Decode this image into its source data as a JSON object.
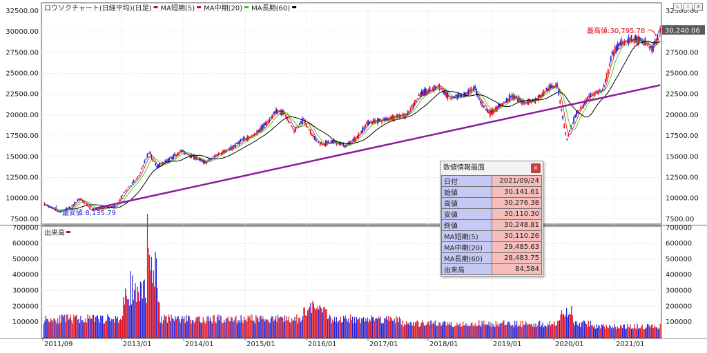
{
  "window_buttons": [
    "L",
    "I",
    "X"
  ],
  "chart_data": [
    {
      "type": "candlestick",
      "legend": [
        {
          "label": "ロウソクチャート(日経平均)(日足)",
          "color": "#e0000d"
        },
        {
          "label": "MA短期(5)",
          "color": "#e0000d"
        },
        {
          "label": "MA中期(20)",
          "color": "#22cc22"
        },
        {
          "label": "MA長期(60)",
          "color": "#000000"
        }
      ],
      "y_ticks": [
        "32500.00",
        "30000.00",
        "27500.00",
        "25000.00",
        "22500.00",
        "20000.00",
        "17500.00",
        "15000.00",
        "12500.00",
        "10000.00",
        "7500.00"
      ],
      "ylim": [
        6900,
        33500
      ],
      "grid": true,
      "price_series": {
        "t": [
          2011.67,
          2011.9,
          2012.1,
          2012.25,
          2012.45,
          2012.6,
          2012.8,
          2012.9,
          2013.0,
          2013.2,
          2013.38,
          2013.5,
          2013.7,
          2013.9,
          2014.1,
          2014.3,
          2014.5,
          2014.7,
          2014.9,
          2015.1,
          2015.3,
          2015.45,
          2015.6,
          2015.75,
          2015.9,
          2016.1,
          2016.2,
          2016.4,
          2016.6,
          2016.8,
          2016.95,
          2017.2,
          2017.4,
          2017.6,
          2017.8,
          2017.95,
          2018.1,
          2018.3,
          2018.5,
          2018.7,
          2018.8,
          2018.95,
          2019.1,
          2019.3,
          2019.5,
          2019.7,
          2019.9,
          2020.05,
          2020.2,
          2020.35,
          2020.6,
          2020.8,
          2020.95,
          2021.1,
          2021.3,
          2021.5,
          2021.6,
          2021.73
        ],
        "v": [
          9300,
          8400,
          8900,
          10000,
          8600,
          8800,
          9000,
          9800,
          11000,
          12500,
          15600,
          13800,
          14600,
          15700,
          15000,
          14300,
          15300,
          15900,
          17000,
          17600,
          19000,
          20500,
          20200,
          18000,
          19500,
          17000,
          16500,
          16800,
          16300,
          17500,
          19100,
          19400,
          19800,
          20000,
          22500,
          22900,
          23500,
          22000,
          22300,
          23300,
          21500,
          20200,
          21000,
          22300,
          21500,
          21800,
          23200,
          23700,
          17000,
          20000,
          22500,
          23000,
          27400,
          28800,
          29100,
          28700,
          27800,
          30249
        ]
      },
      "max_label": "最高値:30,795.78",
      "min_label": "最安値:8,135.79",
      "last_price_label": "30,240.06",
      "trendline": [
        [
          2012.5,
          8800
        ],
        [
          2021.73,
          23600
        ]
      ]
    },
    {
      "type": "bar",
      "series_name": "出来高",
      "y_ticks": [
        "700000",
        "600000",
        "500000",
        "400000",
        "300000",
        "200000",
        "100000"
      ],
      "ylim": [
        0,
        710000
      ],
      "grid": true,
      "x_ticks": [
        "2011/09",
        "2013/01",
        "2014/01",
        "2015/01",
        "2016/01",
        "2017/01",
        "2018/01",
        "2019/01",
        "2020/01",
        "2021/01"
      ]
    }
  ],
  "info_panel": {
    "title": "数値情報画面",
    "close_label": "x",
    "rows": [
      {
        "k": "日付",
        "v": "2021/09/24"
      },
      {
        "k": "始値",
        "v": "30,141.61"
      },
      {
        "k": "高値",
        "v": "30,276.38"
      },
      {
        "k": "安値",
        "v": "30,110.30"
      },
      {
        "k": "終値",
        "v": "30,248.81"
      },
      {
        "k": "MA短期(5)",
        "v": "30,110.26"
      },
      {
        "k": "MA中期(20)",
        "v": "29,485.63"
      },
      {
        "k": "MA長期(60)",
        "v": "28,483.75"
      },
      {
        "k": "出来高",
        "v": "84,584"
      }
    ]
  }
}
